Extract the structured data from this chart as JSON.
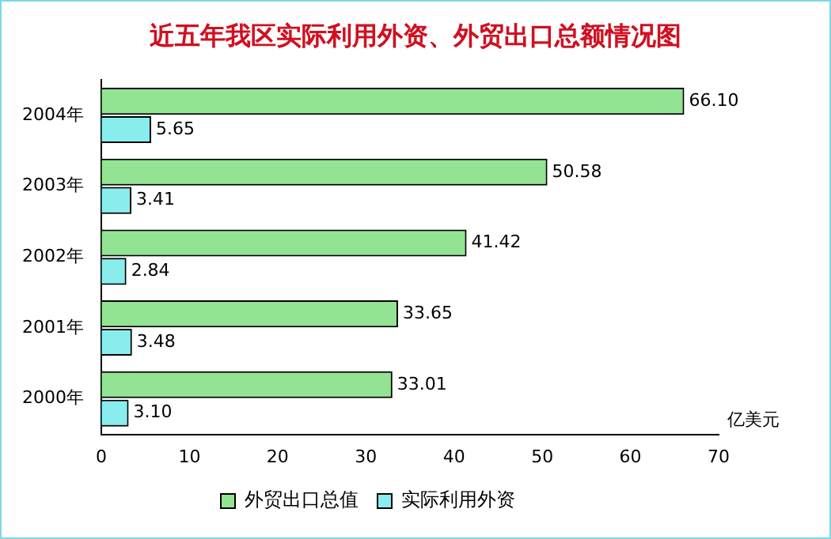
{
  "chart_data": {
    "type": "bar",
    "orientation": "horizontal",
    "title": "近五年我区实际利用外资、外贸出口总额情况图",
    "xlabel": "亿美元",
    "categories": [
      "2004年",
      "2003年",
      "2002年",
      "2001年",
      "2000年"
    ],
    "series": [
      {
        "name": "外贸出口总值",
        "color": "#33cc33",
        "values": [
          66.1,
          50.58,
          41.42,
          33.65,
          33.01
        ],
        "value_labels": [
          "66.10",
          "50.58",
          "41.42",
          "33.65",
          "33.01"
        ]
      },
      {
        "name": "实际利用外资",
        "color": "#22dddd",
        "values": [
          5.65,
          3.41,
          2.84,
          3.48,
          3.1
        ],
        "value_labels": [
          "5.65",
          "3.41",
          "2.84",
          "3.48",
          "3.10"
        ]
      }
    ],
    "xlim": [
      0,
      70
    ],
    "xticks": [
      0,
      10,
      20,
      30,
      40,
      50,
      60,
      70
    ],
    "grid": false,
    "legend": "bottom"
  }
}
